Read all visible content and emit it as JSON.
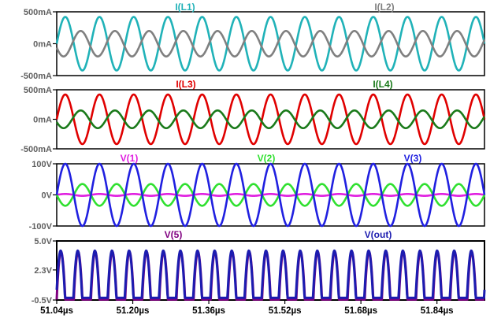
{
  "chart_data": [
    {
      "type": "line",
      "ylim": [
        -500,
        500
      ],
      "y_unit": "mA",
      "y_ticks": [
        "500mA",
        "0mA",
        "-500mA"
      ],
      "series": [
        {
          "name": "I(L1)",
          "color": "#20b2b8",
          "amplitude": 420,
          "offset": 0,
          "periods": 12.5,
          "phase": 0,
          "waveform": "sine"
        },
        {
          "name": "I(L2)",
          "color": "#808080",
          "amplitude": 200,
          "offset": 0,
          "periods": 12.5,
          "phase": 0.55,
          "waveform": "sine"
        }
      ]
    },
    {
      "type": "line",
      "ylim": [
        -500,
        500
      ],
      "y_unit": "mA",
      "y_ticks": [
        "500mA",
        "0mA",
        "-500mA"
      ],
      "series": [
        {
          "name": "I(L3)",
          "color": "#e00000",
          "amplitude": 420,
          "offset": 0,
          "periods": 12.5,
          "phase": 0,
          "waveform": "sine"
        },
        {
          "name": "I(L4)",
          "color": "#1a7a1a",
          "amplitude": 150,
          "offset": 0,
          "periods": 12.5,
          "phase": 0.55,
          "waveform": "sine"
        }
      ]
    },
    {
      "type": "line",
      "ylim": [
        -100,
        100
      ],
      "y_unit": "V",
      "y_ticks": [
        "100V",
        "0V",
        "-100V"
      ],
      "series": [
        {
          "name": "V(1)",
          "color": "#e020e0",
          "amplitude": 3,
          "offset": 0,
          "periods": 12.5,
          "phase": 0,
          "waveform": "sine"
        },
        {
          "name": "V(2)",
          "color": "#30e030",
          "amplitude": 35,
          "offset": 0,
          "periods": 12.5,
          "phase": 0.5,
          "waveform": "sine"
        },
        {
          "name": "V(3)",
          "color": "#2020e0",
          "amplitude": 100,
          "offset": 0,
          "periods": 12.5,
          "phase": 0,
          "waveform": "sine"
        }
      ]
    },
    {
      "type": "line",
      "ylim": [
        -0.5,
        5.0
      ],
      "y_unit": "V",
      "y_ticks": [
        "5.0V",
        "2.3V",
        "-0.5V"
      ],
      "series": [
        {
          "name": "V(5)",
          "color": "#800080",
          "amplitude": 4.45,
          "offset": -0.45,
          "periods": 25,
          "phase": 0,
          "waveform": "half-rect"
        },
        {
          "name": "V(out)",
          "color": "#1c1cb0",
          "amplitude": 4.4,
          "offset": -0.3,
          "periods": 25,
          "phase": 0.02,
          "waveform": "half-rect"
        }
      ]
    }
  ],
  "x_axis": {
    "unit": "µs",
    "xlim": [
      51.04,
      51.94
    ],
    "ticks": [
      {
        "value": 51.04,
        "label": "51.04µs"
      },
      {
        "value": 51.2,
        "label": "51.20µs"
      },
      {
        "value": 51.36,
        "label": "51.36µs"
      },
      {
        "value": 51.52,
        "label": "51.52µs"
      },
      {
        "value": 51.68,
        "label": "51.68µs"
      },
      {
        "value": 51.84,
        "label": "51.84µs"
      }
    ]
  },
  "label_color": "#606060"
}
